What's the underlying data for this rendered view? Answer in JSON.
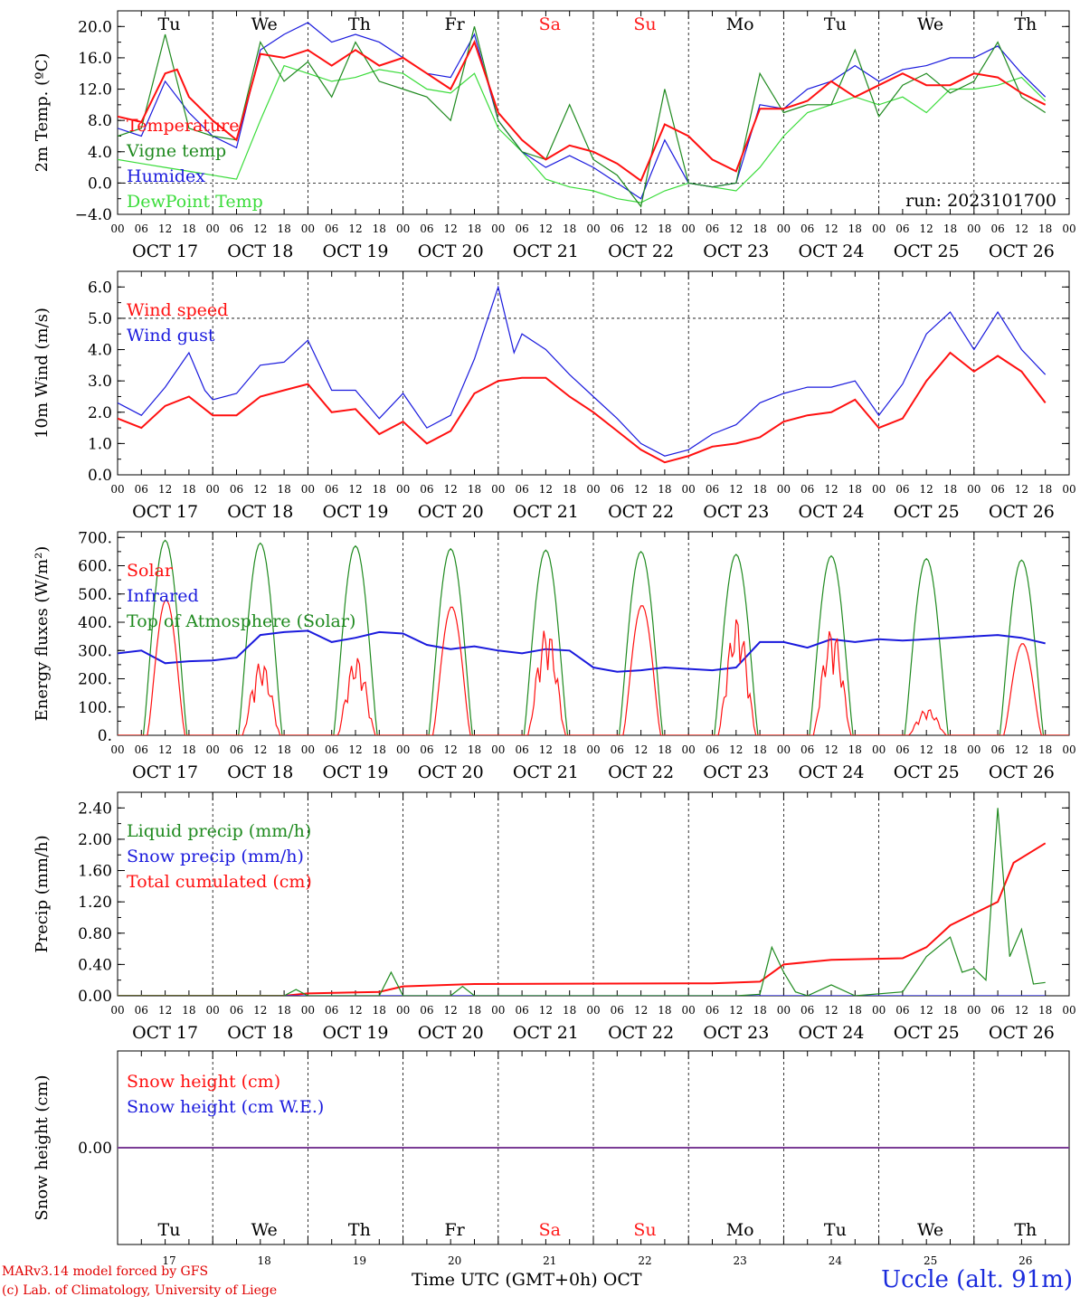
{
  "meta": {
    "station": "Uccle (alt. 91m)",
    "run_label": "run: 2023101700",
    "model_line": "MARv3.14 model forced by GFS",
    "credit_line": "(c) Lab. of Climatology, University of Liege",
    "time_axis_label": "Time UTC (GMT+0h)",
    "month_label": "OCT"
  },
  "days": {
    "weekdays": [
      "Tu",
      "We",
      "Th",
      "Fr",
      "Sa",
      "Su",
      "Mo",
      "Tu",
      "We",
      "Th"
    ],
    "weekend_flags": [
      false,
      false,
      false,
      false,
      true,
      true,
      false,
      false,
      false,
      false
    ],
    "dates": [
      "OCT 17",
      "OCT 18",
      "OCT 19",
      "OCT 20",
      "OCT 21",
      "OCT 22",
      "OCT 23",
      "OCT 24",
      "OCT 25",
      "OCT 26"
    ],
    "day_numbers": [
      "17",
      "18",
      "19",
      "20",
      "21",
      "22",
      "23",
      "24",
      "25",
      "26"
    ],
    "hour_ticks": [
      "00",
      "06",
      "12",
      "18"
    ],
    "final_hour_tick": "00"
  },
  "colors": {
    "red": "#ff1010",
    "blue": "#1a1add",
    "green": "#1f8a1f",
    "lightgreen": "#3adc3a",
    "purple": "#7b3c96",
    "weekend": "#ff1a1a"
  },
  "chart_data": [
    {
      "type": "line",
      "ylabel": "2m Temp. (ºC)",
      "ylim": [
        -4,
        22
      ],
      "yticks": [
        -4,
        0,
        4,
        8,
        12,
        16,
        20
      ],
      "ytick_labels": [
        "−4.0",
        "0.0",
        "4.0",
        "8.0",
        "12.0",
        "16.0",
        "20.0"
      ],
      "dashed_ref": 0,
      "series": [
        {
          "name": "Temperature",
          "color": "red",
          "x": [
            0,
            6,
            12,
            15,
            18,
            24,
            30,
            36,
            42,
            48,
            54,
            60,
            66,
            72,
            78,
            84,
            90,
            96,
            102,
            108,
            114,
            120,
            126,
            132,
            138,
            144,
            150,
            156,
            162,
            168,
            174,
            180,
            186,
            192,
            198,
            204,
            210,
            216,
            222,
            228,
            234
          ],
          "y": [
            8.5,
            7.8,
            14,
            14.5,
            11,
            8,
            5.5,
            16.5,
            16,
            17,
            15,
            17,
            15,
            16,
            14,
            12,
            18,
            9,
            5.5,
            3,
            4.8,
            4,
            2.5,
            0.3,
            7.5,
            6,
            3,
            1.5,
            9.5,
            9.5,
            10.5,
            13,
            11,
            12.5,
            14,
            12.5,
            12.5,
            14,
            13.5,
            11.5,
            10
          ]
        },
        {
          "name": "Vigne temp",
          "color": "green",
          "x": [
            0,
            6,
            12,
            18,
            24,
            30,
            36,
            42,
            48,
            54,
            60,
            66,
            72,
            78,
            84,
            90,
            96,
            102,
            108,
            114,
            120,
            126,
            132,
            138,
            144,
            150,
            156,
            162,
            168,
            174,
            180,
            186,
            192,
            198,
            204,
            210,
            216,
            222,
            228,
            234
          ],
          "y": [
            6,
            7,
            19,
            7,
            6,
            5.5,
            18,
            13,
            15.5,
            11,
            18,
            13,
            12,
            11,
            8,
            20,
            8,
            4,
            3,
            10,
            3,
            1,
            -3,
            12,
            0,
            -0.5,
            0,
            14,
            9,
            10,
            10,
            17,
            8.5,
            12.5,
            14,
            11.5,
            13,
            18,
            11,
            9
          ]
        },
        {
          "name": "Humidex",
          "color": "blue",
          "x": [
            0,
            6,
            12,
            18,
            24,
            30,
            36,
            42,
            48,
            54,
            60,
            66,
            72,
            78,
            84,
            90,
            96,
            102,
            108,
            114,
            120,
            126,
            132,
            138,
            144,
            150,
            156,
            162,
            168,
            174,
            180,
            186,
            192,
            198,
            204,
            210,
            216,
            222,
            228,
            234
          ],
          "y": [
            7,
            6,
            13,
            9,
            6,
            4.5,
            17,
            19,
            20.5,
            18,
            19,
            18,
            16,
            14,
            13.5,
            19,
            8,
            4,
            2,
            3.5,
            2,
            0,
            -2,
            5.5,
            0,
            -0.5,
            0,
            10,
            9.5,
            12,
            13,
            15,
            13,
            14.5,
            15,
            16,
            16,
            17.5,
            14,
            11
          ]
        },
        {
          "name": "DewPoint Temp",
          "color": "lightgreen",
          "x": [
            0,
            6,
            12,
            18,
            24,
            30,
            36,
            42,
            48,
            54,
            60,
            66,
            72,
            78,
            84,
            90,
            96,
            102,
            108,
            114,
            120,
            126,
            132,
            138,
            144,
            150,
            156,
            162,
            168,
            174,
            180,
            186,
            192,
            198,
            204,
            210,
            216,
            222,
            228,
            234
          ],
          "y": [
            3,
            2.5,
            2,
            1.5,
            1,
            0.5,
            8,
            15,
            14,
            13,
            13.5,
            14.5,
            14,
            12,
            11.5,
            14,
            7,
            4,
            0.5,
            -0.5,
            -1,
            -2,
            -2.5,
            -1,
            0,
            -0.5,
            -1,
            2,
            6,
            9,
            10,
            11,
            10,
            11,
            9,
            12,
            12,
            12.5,
            13.5,
            10.5
          ]
        }
      ]
    },
    {
      "type": "line",
      "ylabel": "10m Wind (m/s)",
      "ylim": [
        0,
        6.5
      ],
      "yticks": [
        0,
        1,
        2,
        3,
        4,
        5,
        6
      ],
      "ytick_labels": [
        "0.0",
        "1.0",
        "2.0",
        "3.0",
        "4.0",
        "5.0",
        "6.0"
      ],
      "dashed_ref": 5,
      "series": [
        {
          "name": "Wind speed",
          "color": "red",
          "x": [
            0,
            6,
            12,
            18,
            24,
            30,
            36,
            42,
            48,
            54,
            60,
            66,
            72,
            78,
            84,
            90,
            96,
            102,
            108,
            114,
            120,
            126,
            132,
            138,
            144,
            150,
            156,
            162,
            168,
            174,
            180,
            186,
            192,
            198,
            204,
            210,
            216,
            222,
            228,
            234
          ],
          "y": [
            1.8,
            1.5,
            2.2,
            2.5,
            1.9,
            1.9,
            2.5,
            2.7,
            2.9,
            2.0,
            2.1,
            1.3,
            1.7,
            1.0,
            1.4,
            2.6,
            3.0,
            3.1,
            3.1,
            2.5,
            2.0,
            1.4,
            0.8,
            0.4,
            0.6,
            0.9,
            1.0,
            1.2,
            1.7,
            1.9,
            2.0,
            2.4,
            1.5,
            1.8,
            3.0,
            3.9,
            3.3,
            3.8,
            3.3,
            2.3
          ]
        },
        {
          "name": "Wind gust",
          "color": "blue",
          "x": [
            0,
            6,
            12,
            18,
            22,
            24,
            30,
            36,
            42,
            48,
            54,
            60,
            66,
            72,
            78,
            84,
            90,
            96,
            100,
            102,
            108,
            114,
            120,
            126,
            132,
            138,
            144,
            150,
            156,
            162,
            168,
            174,
            180,
            186,
            192,
            198,
            204,
            210,
            216,
            222,
            228,
            234
          ],
          "y": [
            2.3,
            1.9,
            2.8,
            3.9,
            2.7,
            2.4,
            2.6,
            3.5,
            3.6,
            4.3,
            2.7,
            2.7,
            1.8,
            2.6,
            1.5,
            1.9,
            3.7,
            6.0,
            3.9,
            4.5,
            4.0,
            3.2,
            2.5,
            1.8,
            1.0,
            0.6,
            0.8,
            1.3,
            1.6,
            2.3,
            2.6,
            2.8,
            2.8,
            3.0,
            1.9,
            2.9,
            4.5,
            5.2,
            4.0,
            5.2,
            4.0,
            3.2
          ]
        }
      ]
    },
    {
      "type": "line",
      "ylabel": "Energy fluxes (W/m²)",
      "ylim": [
        0,
        720
      ],
      "yticks": [
        0,
        100,
        200,
        300,
        400,
        500,
        600,
        700
      ],
      "ytick_labels": [
        "0.",
        "100.",
        "200.",
        "300.",
        "400.",
        "500.",
        "600.",
        "700."
      ],
      "dashed_ref": null,
      "series": [
        {
          "name": "Solar",
          "color": "red",
          "peaks": [
            480,
            265,
            280,
            455,
            385,
            460,
            420,
            385,
            95,
            325
          ]
        },
        {
          "name": "Infrared",
          "color": "blue",
          "x": [
            0,
            6,
            12,
            18,
            24,
            30,
            36,
            42,
            48,
            54,
            60,
            66,
            72,
            78,
            84,
            90,
            96,
            102,
            108,
            114,
            120,
            126,
            132,
            138,
            144,
            150,
            156,
            162,
            168,
            174,
            180,
            186,
            192,
            198,
            204,
            210,
            216,
            222,
            228,
            234
          ],
          "y": [
            290,
            300,
            255,
            262,
            265,
            275,
            355,
            365,
            370,
            330,
            345,
            365,
            360,
            320,
            305,
            315,
            300,
            290,
            305,
            300,
            240,
            225,
            230,
            240,
            235,
            230,
            240,
            330,
            330,
            310,
            340,
            330,
            340,
            335,
            340,
            345,
            350,
            355,
            345,
            325
          ]
        },
        {
          "name": "Top of Atmosphere (Solar)",
          "color": "green",
          "peaks": [
            690,
            680,
            670,
            660,
            655,
            650,
            640,
            635,
            625,
            620
          ]
        }
      ]
    },
    {
      "type": "line",
      "ylabel": "Precip (mm/h)",
      "ylim": [
        0,
        2.6
      ],
      "yticks": [
        0,
        0.4,
        0.8,
        1.2,
        1.6,
        2.0,
        2.4
      ],
      "ytick_labels": [
        "0.00",
        "0.40",
        "0.80",
        "1.20",
        "1.60",
        "2.00",
        "2.40"
      ],
      "dashed_ref": null,
      "series": [
        {
          "name": "Liquid precip (mm/h)",
          "color": "green",
          "x": [
            0,
            42,
            45,
            48,
            66,
            69,
            72,
            84,
            87,
            90,
            150,
            156,
            162,
            165,
            168,
            171,
            174,
            180,
            186,
            198,
            204,
            210,
            213,
            216,
            219,
            222,
            225,
            228,
            231,
            234
          ],
          "y": [
            0,
            0,
            0.08,
            0,
            0,
            0.3,
            0,
            0,
            0.12,
            0,
            0,
            0,
            0.02,
            0.62,
            0.3,
            0.05,
            0,
            0.14,
            0,
            0.05,
            0.5,
            0.75,
            0.3,
            0.35,
            0.2,
            2.4,
            0.5,
            0.85,
            0.15,
            0.17
          ]
        },
        {
          "name": "Snow precip (mm/h)",
          "color": "blue",
          "x": [
            0,
            234
          ],
          "y": [
            0,
            0
          ]
        },
        {
          "name": "Total cumulated (cm)",
          "color": "red",
          "x": [
            0,
            42,
            48,
            66,
            72,
            90,
            150,
            162,
            168,
            180,
            198,
            204,
            210,
            216,
            222,
            226,
            234
          ],
          "y": [
            0,
            0,
            0.03,
            0.05,
            0.12,
            0.15,
            0.16,
            0.18,
            0.4,
            0.46,
            0.48,
            0.62,
            0.9,
            1.05,
            1.2,
            1.7,
            1.95
          ]
        }
      ]
    },
    {
      "type": "line",
      "ylabel": "Snow height (cm)",
      "ylim": [
        -1,
        1
      ],
      "yticks": [
        0
      ],
      "ytick_labels": [
        "0.00"
      ],
      "dashed_ref": null,
      "series": [
        {
          "name": "Snow height (cm)",
          "color": "red",
          "x": [
            0,
            240
          ],
          "y": [
            0,
            0
          ]
        },
        {
          "name": "Snow height (cm W.E.)",
          "color": "blue",
          "x": [
            0,
            240
          ],
          "y": [
            0,
            0
          ]
        }
      ]
    }
  ]
}
